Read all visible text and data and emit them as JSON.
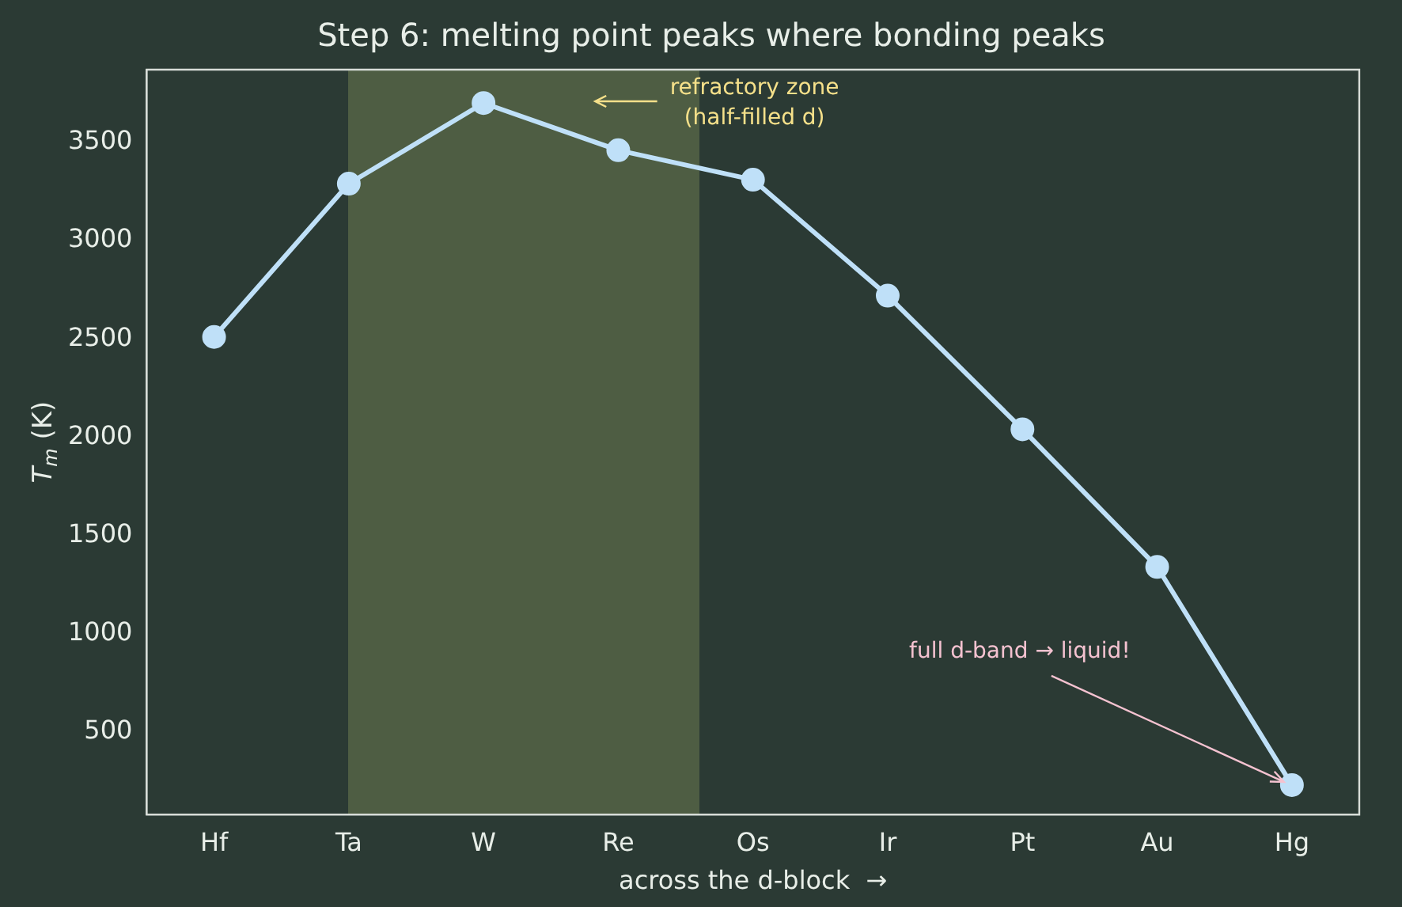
{
  "chart_data": {
    "type": "line",
    "title": "Step 6: melting point peaks where bonding peaks",
    "xlabel": "across the d-block  →",
    "ylabel": "T$_{m}$ (K)",
    "categories": [
      "Hf",
      "Ta",
      "W",
      "Re",
      "Os",
      "Ir",
      "Pt",
      "Au",
      "Hg"
    ],
    "series": [
      {
        "color": "#bfe0f8",
        "values": [
          2510,
          3290,
          3700,
          3460,
          3310,
          2720,
          2040,
          1340,
          230
        ]
      }
    ],
    "ylim": [
      80,
      3870
    ],
    "yticks": [
      500,
      1000,
      1500,
      2000,
      2500,
      3000,
      3500
    ],
    "grid": false,
    "legend": false,
    "marker": "circle",
    "line_style": "solid",
    "annotations": [
      "refractory zone\n(half-filled d)",
      {
        "text": "full d-band → liquid!",
        "x": "Hg",
        "y": 230
      }
    ]
  }
}
